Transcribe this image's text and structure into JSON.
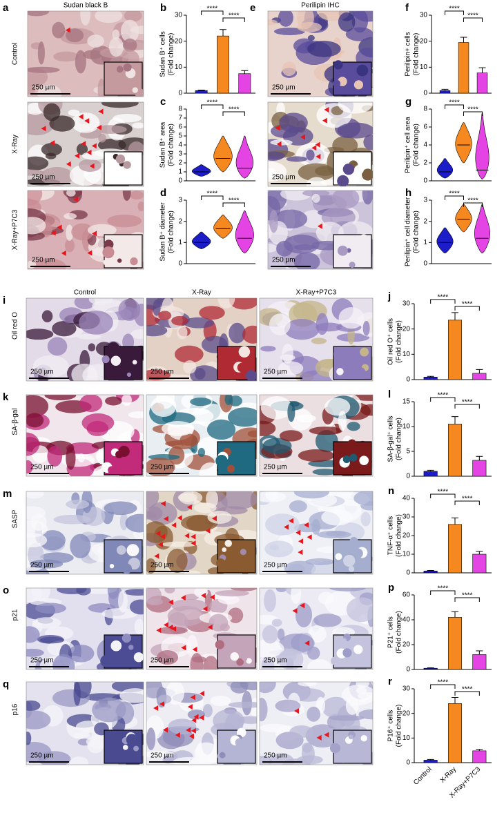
{
  "image_panels": {
    "a": {
      "panel": "a",
      "title": "Sudan black B",
      "rows": [
        "Control",
        "X-Ray",
        "X-Ray+P7C3"
      ]
    },
    "e": {
      "panel": "e",
      "title": "Perilipin IHC"
    },
    "bottom": {
      "columns": [
        "Control",
        "X-Ray",
        "X-Ray+P7C3"
      ],
      "rows": [
        {
          "panel": "i",
          "label": "Oil red O"
        },
        {
          "panel": "k",
          "label": "SA-β-gal"
        },
        {
          "panel": "m",
          "label": "SASP"
        },
        {
          "panel": "o",
          "label": "p21"
        },
        {
          "panel": "q",
          "label": "p16"
        }
      ]
    },
    "scale_bar": "250 µm"
  },
  "chart_data": [
    {
      "type": "bar",
      "panel": "b",
      "ylabel": [
        "Sudan B⁺ cells",
        "(Fold change)"
      ],
      "values": [
        1,
        22,
        7.5
      ],
      "errors": [
        0.2,
        2.5,
        1.2
      ],
      "colors": [
        "#1c1cc8",
        "#f5891f",
        "#e544e5"
      ],
      "ylim": [
        0,
        30
      ],
      "yticks": [
        0,
        10,
        20,
        30
      ],
      "significance": [
        "****",
        "****"
      ]
    },
    {
      "type": "violin",
      "panel": "c",
      "ylabel": [
        "Sudan B⁺ area",
        "(Fold change)"
      ],
      "values": [
        1,
        2.5,
        1.4
      ],
      "min": [
        0.5,
        1,
        0.3
      ],
      "max": [
        1.8,
        5,
        5
      ],
      "colors": [
        "#1c1cc8",
        "#f5891f",
        "#e544e5"
      ],
      "ylim": [
        0,
        8
      ],
      "yticks": [
        0,
        1,
        2,
        3,
        4,
        5,
        6,
        7,
        8
      ],
      "significance": [
        "****",
        "****"
      ]
    },
    {
      "type": "violin",
      "panel": "d",
      "ylabel": [
        "Sudan B⁺ diameter",
        "(Fold change)"
      ],
      "values": [
        1,
        1.65,
        1.2
      ],
      "min": [
        0.7,
        1.2,
        0.5
      ],
      "max": [
        1.5,
        2.3,
        2.5
      ],
      "colors": [
        "#1c1cc8",
        "#f5891f",
        "#e544e5"
      ],
      "ylim": [
        0,
        3
      ],
      "yticks": [
        0,
        1,
        2,
        3
      ],
      "significance": [
        "****",
        "****"
      ]
    },
    {
      "type": "bar",
      "panel": "f",
      "ylabel": [
        "Perilipin+ cells",
        "(Fold change)"
      ],
      "values": [
        1,
        19.5,
        7.8
      ],
      "errors": [
        0.5,
        2,
        2
      ],
      "colors": [
        "#1c1cc8",
        "#f5891f",
        "#e544e5"
      ],
      "ylim": [
        0,
        30
      ],
      "yticks": [
        0,
        10,
        20,
        30
      ],
      "significance": [
        "****",
        "****"
      ]
    },
    {
      "type": "violin",
      "panel": "g",
      "ylabel": [
        "Perilipin⁺ cell area",
        "(Fold change)"
      ],
      "values": [
        1,
        4,
        1.2
      ],
      "min": [
        0.3,
        2,
        0.2
      ],
      "max": [
        2.5,
        6.5,
        7.5
      ],
      "colors": [
        "#1c1cc8",
        "#f5891f",
        "#e544e5"
      ],
      "ylim": [
        0,
        8
      ],
      "yticks": [
        0,
        2,
        4,
        6,
        8
      ],
      "significance": [
        "****",
        "****"
      ]
    },
    {
      "type": "violin",
      "panel": "h",
      "ylabel": [
        "Perilipin⁺ cell diameter",
        "(Fold change)"
      ],
      "values": [
        1,
        2.1,
        1.2
      ],
      "min": [
        0.5,
        1.5,
        0.5
      ],
      "max": [
        1.7,
        2.8,
        2.8
      ],
      "colors": [
        "#1c1cc8",
        "#f5891f",
        "#e544e5"
      ],
      "ylim": [
        0,
        3
      ],
      "yticks": [
        0,
        1,
        2,
        3
      ],
      "significance": [
        "****",
        "****"
      ]
    },
    {
      "type": "bar",
      "panel": "j",
      "ylabel": [
        "Oil red O⁺ cells",
        "(Fold change)"
      ],
      "values": [
        1,
        23.5,
        2.5
      ],
      "errors": [
        0.3,
        3,
        1.5
      ],
      "colors": [
        "#1c1cc8",
        "#f5891f",
        "#e544e5"
      ],
      "ylim": [
        0,
        30
      ],
      "yticks": [
        0,
        10,
        20,
        30
      ],
      "significance": [
        "****",
        "****"
      ]
    },
    {
      "type": "bar",
      "panel": "l",
      "ylabel": [
        "SA-β-gal⁺ cells",
        "(Fold change)"
      ],
      "values": [
        1,
        10.5,
        3.2
      ],
      "errors": [
        0.2,
        1.5,
        0.8
      ],
      "colors": [
        "#1c1cc8",
        "#f5891f",
        "#e544e5"
      ],
      "ylim": [
        0,
        15
      ],
      "yticks": [
        0,
        5,
        10,
        15
      ],
      "significance": [
        "****",
        "****"
      ]
    },
    {
      "type": "bar",
      "panel": "n",
      "ylabel": [
        "TNF-α⁺ cells",
        "(Fold change)"
      ],
      "values": [
        1,
        26,
        10
      ],
      "errors": [
        0.3,
        3.5,
        1.5
      ],
      "colors": [
        "#1c1cc8",
        "#f5891f",
        "#e544e5"
      ],
      "ylim": [
        0,
        40
      ],
      "yticks": [
        0,
        10,
        20,
        30,
        40
      ],
      "significance": [
        "****",
        "****"
      ]
    },
    {
      "type": "bar",
      "panel": "p",
      "ylabel": [
        "P21⁺ cells",
        "(Fold change)"
      ],
      "values": [
        1,
        42,
        12
      ],
      "errors": [
        0.3,
        4.5,
        3
      ],
      "colors": [
        "#1c1cc8",
        "#f5891f",
        "#e544e5"
      ],
      "ylim": [
        0,
        60
      ],
      "yticks": [
        0,
        20,
        40,
        60
      ],
      "significance": [
        "****",
        "****"
      ]
    },
    {
      "type": "bar",
      "panel": "r",
      "ylabel": [
        "P16⁺ cells",
        "(Fold change)"
      ],
      "categories": [
        "Control",
        "X-Ray",
        "X-Ray+P7C3"
      ],
      "values": [
        1,
        24,
        4.8
      ],
      "errors": [
        0.3,
        2.5,
        0.6
      ],
      "colors": [
        "#1c1cc8",
        "#f5891f",
        "#e544e5"
      ],
      "ylim": [
        0,
        30
      ],
      "yticks": [
        0,
        10,
        20,
        30
      ],
      "significance": [
        "****",
        "****"
      ]
    }
  ]
}
